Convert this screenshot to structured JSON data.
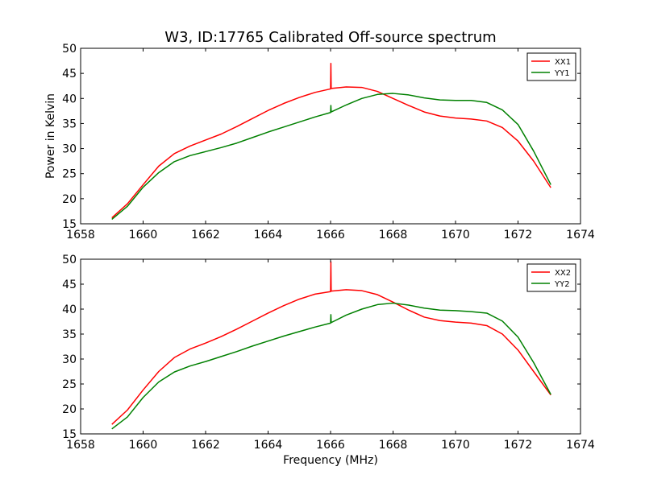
{
  "figure": {
    "title": "W3, ID:17765 Calibrated Off-source spectrum"
  },
  "chart_data": [
    {
      "type": "line",
      "title": "W3, ID:17765 Calibrated Off-source spectrum",
      "xlabel": "",
      "ylabel": "Power in Kelvin",
      "xlim": [
        1658,
        1674
      ],
      "ylim": [
        15,
        50
      ],
      "xticks": [
        "1658",
        "1660",
        "1662",
        "1664",
        "1666",
        "1668",
        "1670",
        "1672",
        "1674"
      ],
      "yticks": [
        "15",
        "20",
        "25",
        "30",
        "35",
        "40",
        "45",
        "50"
      ],
      "legend_position": "top-right",
      "series": [
        {
          "name": "XX1",
          "color": "#ff0000",
          "x": [
            1659.0,
            1659.5,
            1660.0,
            1660.5,
            1661.0,
            1661.5,
            1662.0,
            1662.5,
            1663.0,
            1663.5,
            1664.0,
            1664.5,
            1665.0,
            1665.5,
            1666.0,
            1666.01,
            1666.02,
            1666.5,
            1667.0,
            1667.5,
            1668.0,
            1668.5,
            1669.0,
            1669.5,
            1670.0,
            1670.5,
            1671.0,
            1671.5,
            1672.0,
            1672.5,
            1673.05
          ],
          "y": [
            16.2,
            19.0,
            22.8,
            26.5,
            29.0,
            30.5,
            31.7,
            32.9,
            34.4,
            36.0,
            37.6,
            39.0,
            40.2,
            41.2,
            41.9,
            47.0,
            42.0,
            42.3,
            42.2,
            41.4,
            40.0,
            38.6,
            37.3,
            36.5,
            36.1,
            35.9,
            35.5,
            34.2,
            31.5,
            27.5,
            22.2
          ]
        },
        {
          "name": "YY1",
          "color": "#008000",
          "x": [
            1659.0,
            1659.5,
            1660.0,
            1660.5,
            1661.0,
            1661.5,
            1662.0,
            1662.5,
            1663.0,
            1663.5,
            1664.0,
            1664.5,
            1665.0,
            1665.5,
            1666.0,
            1666.01,
            1666.02,
            1666.5,
            1667.0,
            1667.5,
            1668.0,
            1668.5,
            1669.0,
            1669.5,
            1670.0,
            1670.5,
            1671.0,
            1671.5,
            1672.0,
            1672.5,
            1673.05
          ],
          "y": [
            15.9,
            18.5,
            22.3,
            25.2,
            27.4,
            28.6,
            29.4,
            30.2,
            31.1,
            32.2,
            33.3,
            34.3,
            35.3,
            36.3,
            37.2,
            38.6,
            37.3,
            38.7,
            40.0,
            40.8,
            41.0,
            40.7,
            40.1,
            39.7,
            39.6,
            39.6,
            39.2,
            37.7,
            34.8,
            29.5,
            22.8
          ]
        }
      ]
    },
    {
      "type": "line",
      "title": "",
      "xlabel": "Frequency (MHz)",
      "ylabel": "",
      "xlim": [
        1658,
        1674
      ],
      "ylim": [
        15,
        50
      ],
      "xticks": [
        "1658",
        "1660",
        "1662",
        "1664",
        "1666",
        "1668",
        "1670",
        "1672",
        "1674"
      ],
      "yticks": [
        "15",
        "20",
        "25",
        "30",
        "35",
        "40",
        "45",
        "50"
      ],
      "legend_position": "top-right",
      "series": [
        {
          "name": "XX2",
          "color": "#ff0000",
          "x": [
            1659.0,
            1659.5,
            1660.0,
            1660.5,
            1661.0,
            1661.5,
            1662.0,
            1662.5,
            1663.0,
            1663.5,
            1664.0,
            1664.5,
            1665.0,
            1665.5,
            1666.0,
            1666.01,
            1666.02,
            1666.5,
            1667.0,
            1667.5,
            1668.0,
            1668.5,
            1669.0,
            1669.5,
            1670.0,
            1670.5,
            1671.0,
            1671.5,
            1672.0,
            1672.5,
            1673.05
          ],
          "y": [
            16.9,
            19.8,
            23.8,
            27.5,
            30.3,
            32.0,
            33.2,
            34.5,
            36.0,
            37.6,
            39.2,
            40.7,
            42.0,
            43.0,
            43.5,
            49.5,
            43.6,
            43.9,
            43.7,
            42.9,
            41.4,
            39.8,
            38.4,
            37.7,
            37.4,
            37.2,
            36.7,
            35.0,
            31.8,
            27.5,
            22.8
          ]
        },
        {
          "name": "YY2",
          "color": "#008000",
          "x": [
            1659.0,
            1659.5,
            1660.0,
            1660.5,
            1661.0,
            1661.5,
            1662.0,
            1662.5,
            1663.0,
            1663.5,
            1664.0,
            1664.5,
            1665.0,
            1665.5,
            1666.0,
            1666.01,
            1666.02,
            1666.5,
            1667.0,
            1667.5,
            1668.0,
            1668.5,
            1669.0,
            1669.5,
            1670.0,
            1670.5,
            1671.0,
            1671.5,
            1672.0,
            1672.5,
            1673.05
          ],
          "y": [
            16.0,
            18.4,
            22.3,
            25.4,
            27.4,
            28.6,
            29.5,
            30.5,
            31.5,
            32.6,
            33.6,
            34.6,
            35.5,
            36.4,
            37.2,
            38.9,
            37.3,
            38.8,
            40.0,
            40.9,
            41.2,
            40.8,
            40.2,
            39.8,
            39.7,
            39.5,
            39.2,
            37.6,
            34.4,
            29.3,
            22.9
          ]
        }
      ]
    }
  ]
}
